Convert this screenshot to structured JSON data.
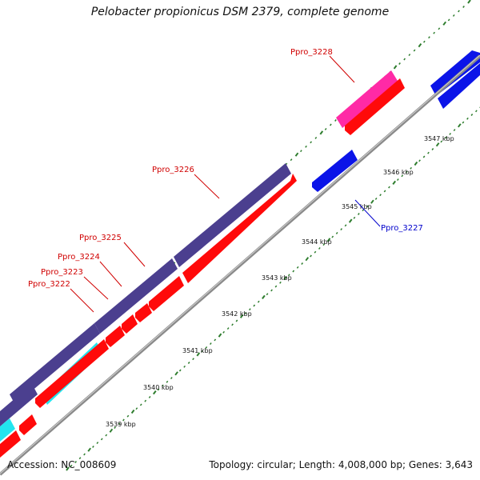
{
  "header": {
    "title": "Pelobacter propionicus DSM 2379, complete genome"
  },
  "footer": {
    "accession": "Accession: NC_008609",
    "summary": "Topology: circular; Length: 4,008,000 bp; Genes: 3,643"
  },
  "colors": {
    "background": "#ffffff",
    "backbone": "#8a8a8a",
    "tick": "#2e7d2e",
    "gene_forward_dark": "#4b3f8f",
    "gene_forward_cyan": "#22e5ef",
    "gene_forward_pink": "#ff2aa6",
    "gene_reverse_red": "#ff0a0a",
    "gene_blue": "#0b14e8",
    "label_red": "#d00000",
    "label_blue": "#0000cc"
  },
  "scale": {
    "labels": [
      "3539 kbp",
      "3540 kbp",
      "3541 kbp",
      "3542 kbp",
      "3543 kbp",
      "3544 kbp",
      "3545 kbp",
      "3546 kbp",
      "3547 kbp"
    ]
  },
  "gene_labels": {
    "ppro_3222": "Ppro_3222",
    "ppro_3223": "Ppro_3223",
    "ppro_3224": "Ppro_3224",
    "ppro_3225": "Ppro_3225",
    "ppro_3226": "Ppro_3226",
    "ppro_3227": "Ppro_3227",
    "ppro_3228": "Ppro_3228"
  }
}
